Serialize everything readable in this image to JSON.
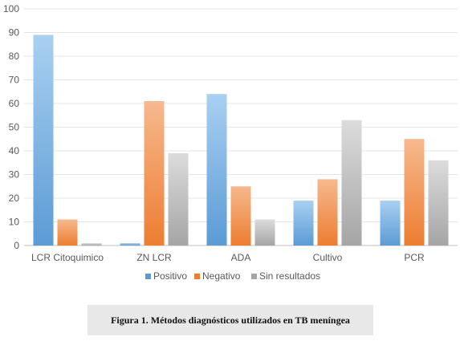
{
  "chart_data": {
    "type": "bar",
    "categories": [
      "LCR Citoquimico",
      "ZN LCR",
      "ADA",
      "Cultivo",
      "PCR"
    ],
    "series": [
      {
        "name": "Positivo",
        "values": [
          89,
          1,
          64,
          19,
          19
        ]
      },
      {
        "name": "Negativo",
        "values": [
          11,
          61,
          25,
          28,
          45
        ]
      },
      {
        "name": "Sin resultados",
        "values": [
          1,
          39,
          11,
          53,
          36
        ]
      }
    ],
    "ylim": [
      0,
      100
    ],
    "yticks": [
      0,
      10,
      20,
      30,
      40,
      50,
      60,
      70,
      80,
      90,
      100
    ],
    "grid": true,
    "legend": "bottom",
    "colors": {
      "Positivo": [
        "#a9d0f1",
        "#5b9bd5"
      ],
      "Negativo": [
        "#f6b98e",
        "#ed7d31"
      ],
      "Sin resultados": [
        "#dcdcdc",
        "#a5a5a5"
      ]
    }
  },
  "caption": "Figura 1. Métodos diagnósticos utilizados en TB meníngea"
}
